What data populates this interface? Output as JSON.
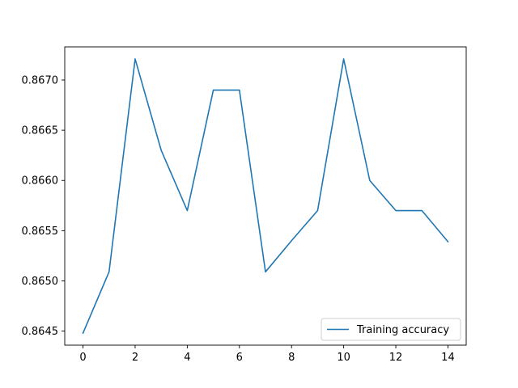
{
  "chart_data": {
    "type": "line",
    "title": "",
    "xlabel": "",
    "ylabel": "",
    "x": [
      0,
      1,
      2,
      3,
      4,
      5,
      6,
      7,
      8,
      9,
      10,
      11,
      12,
      13,
      14
    ],
    "series": [
      {
        "name": "Training accuracy",
        "color": "#1f77b4",
        "values": [
          0.86448,
          0.86509,
          0.86721,
          0.8663,
          0.8657,
          0.8669,
          0.8669,
          0.86509,
          0.8654,
          0.8657,
          0.86721,
          0.866,
          0.8657,
          0.8657,
          0.86539
        ]
      }
    ],
    "xlim": [
      -0.7,
      14.7
    ],
    "ylim": [
      0.86436,
      0.86733
    ],
    "xticks": [
      "0",
      "2",
      "4",
      "6",
      "8",
      "10",
      "12",
      "14"
    ],
    "yticks": [
      "0.8645",
      "0.8650",
      "0.8655",
      "0.8660",
      "0.8665",
      "0.8670"
    ],
    "grid": false,
    "legend_position": "lower-right"
  }
}
